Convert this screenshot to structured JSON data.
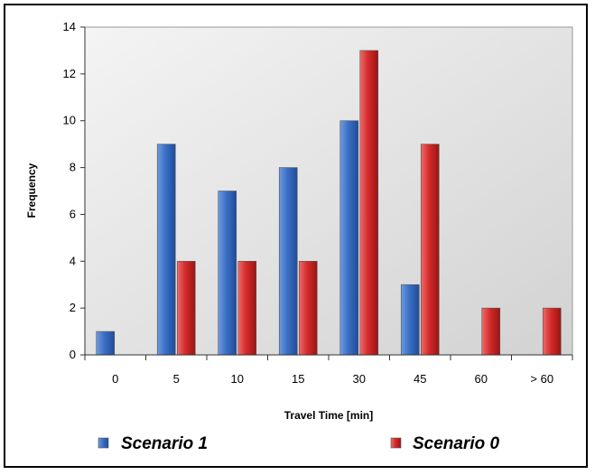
{
  "chart_data": {
    "type": "bar",
    "title": "",
    "xlabel": "Travel Time  [min]",
    "ylabel": "Frequency",
    "categories": [
      "0",
      "5",
      "10",
      "15",
      "30",
      "45",
      "60",
      "> 60"
    ],
    "series": [
      {
        "name": "Scenario 1",
        "values": [
          1,
          9,
          7,
          8,
          10,
          3,
          0,
          0
        ],
        "color": "#3a6fc4"
      },
      {
        "name": "Scenario 0",
        "values": [
          0,
          4,
          4,
          4,
          13,
          9,
          2,
          2
        ],
        "color": "#d42a2a"
      }
    ],
    "yticks": [
      "0",
      "2",
      "4",
      "6",
      "8",
      "10",
      "12",
      "14"
    ],
    "ylim": [
      0,
      14
    ],
    "grid": false,
    "plot_background": "#e8e8e8",
    "legend_position": "bottom"
  }
}
